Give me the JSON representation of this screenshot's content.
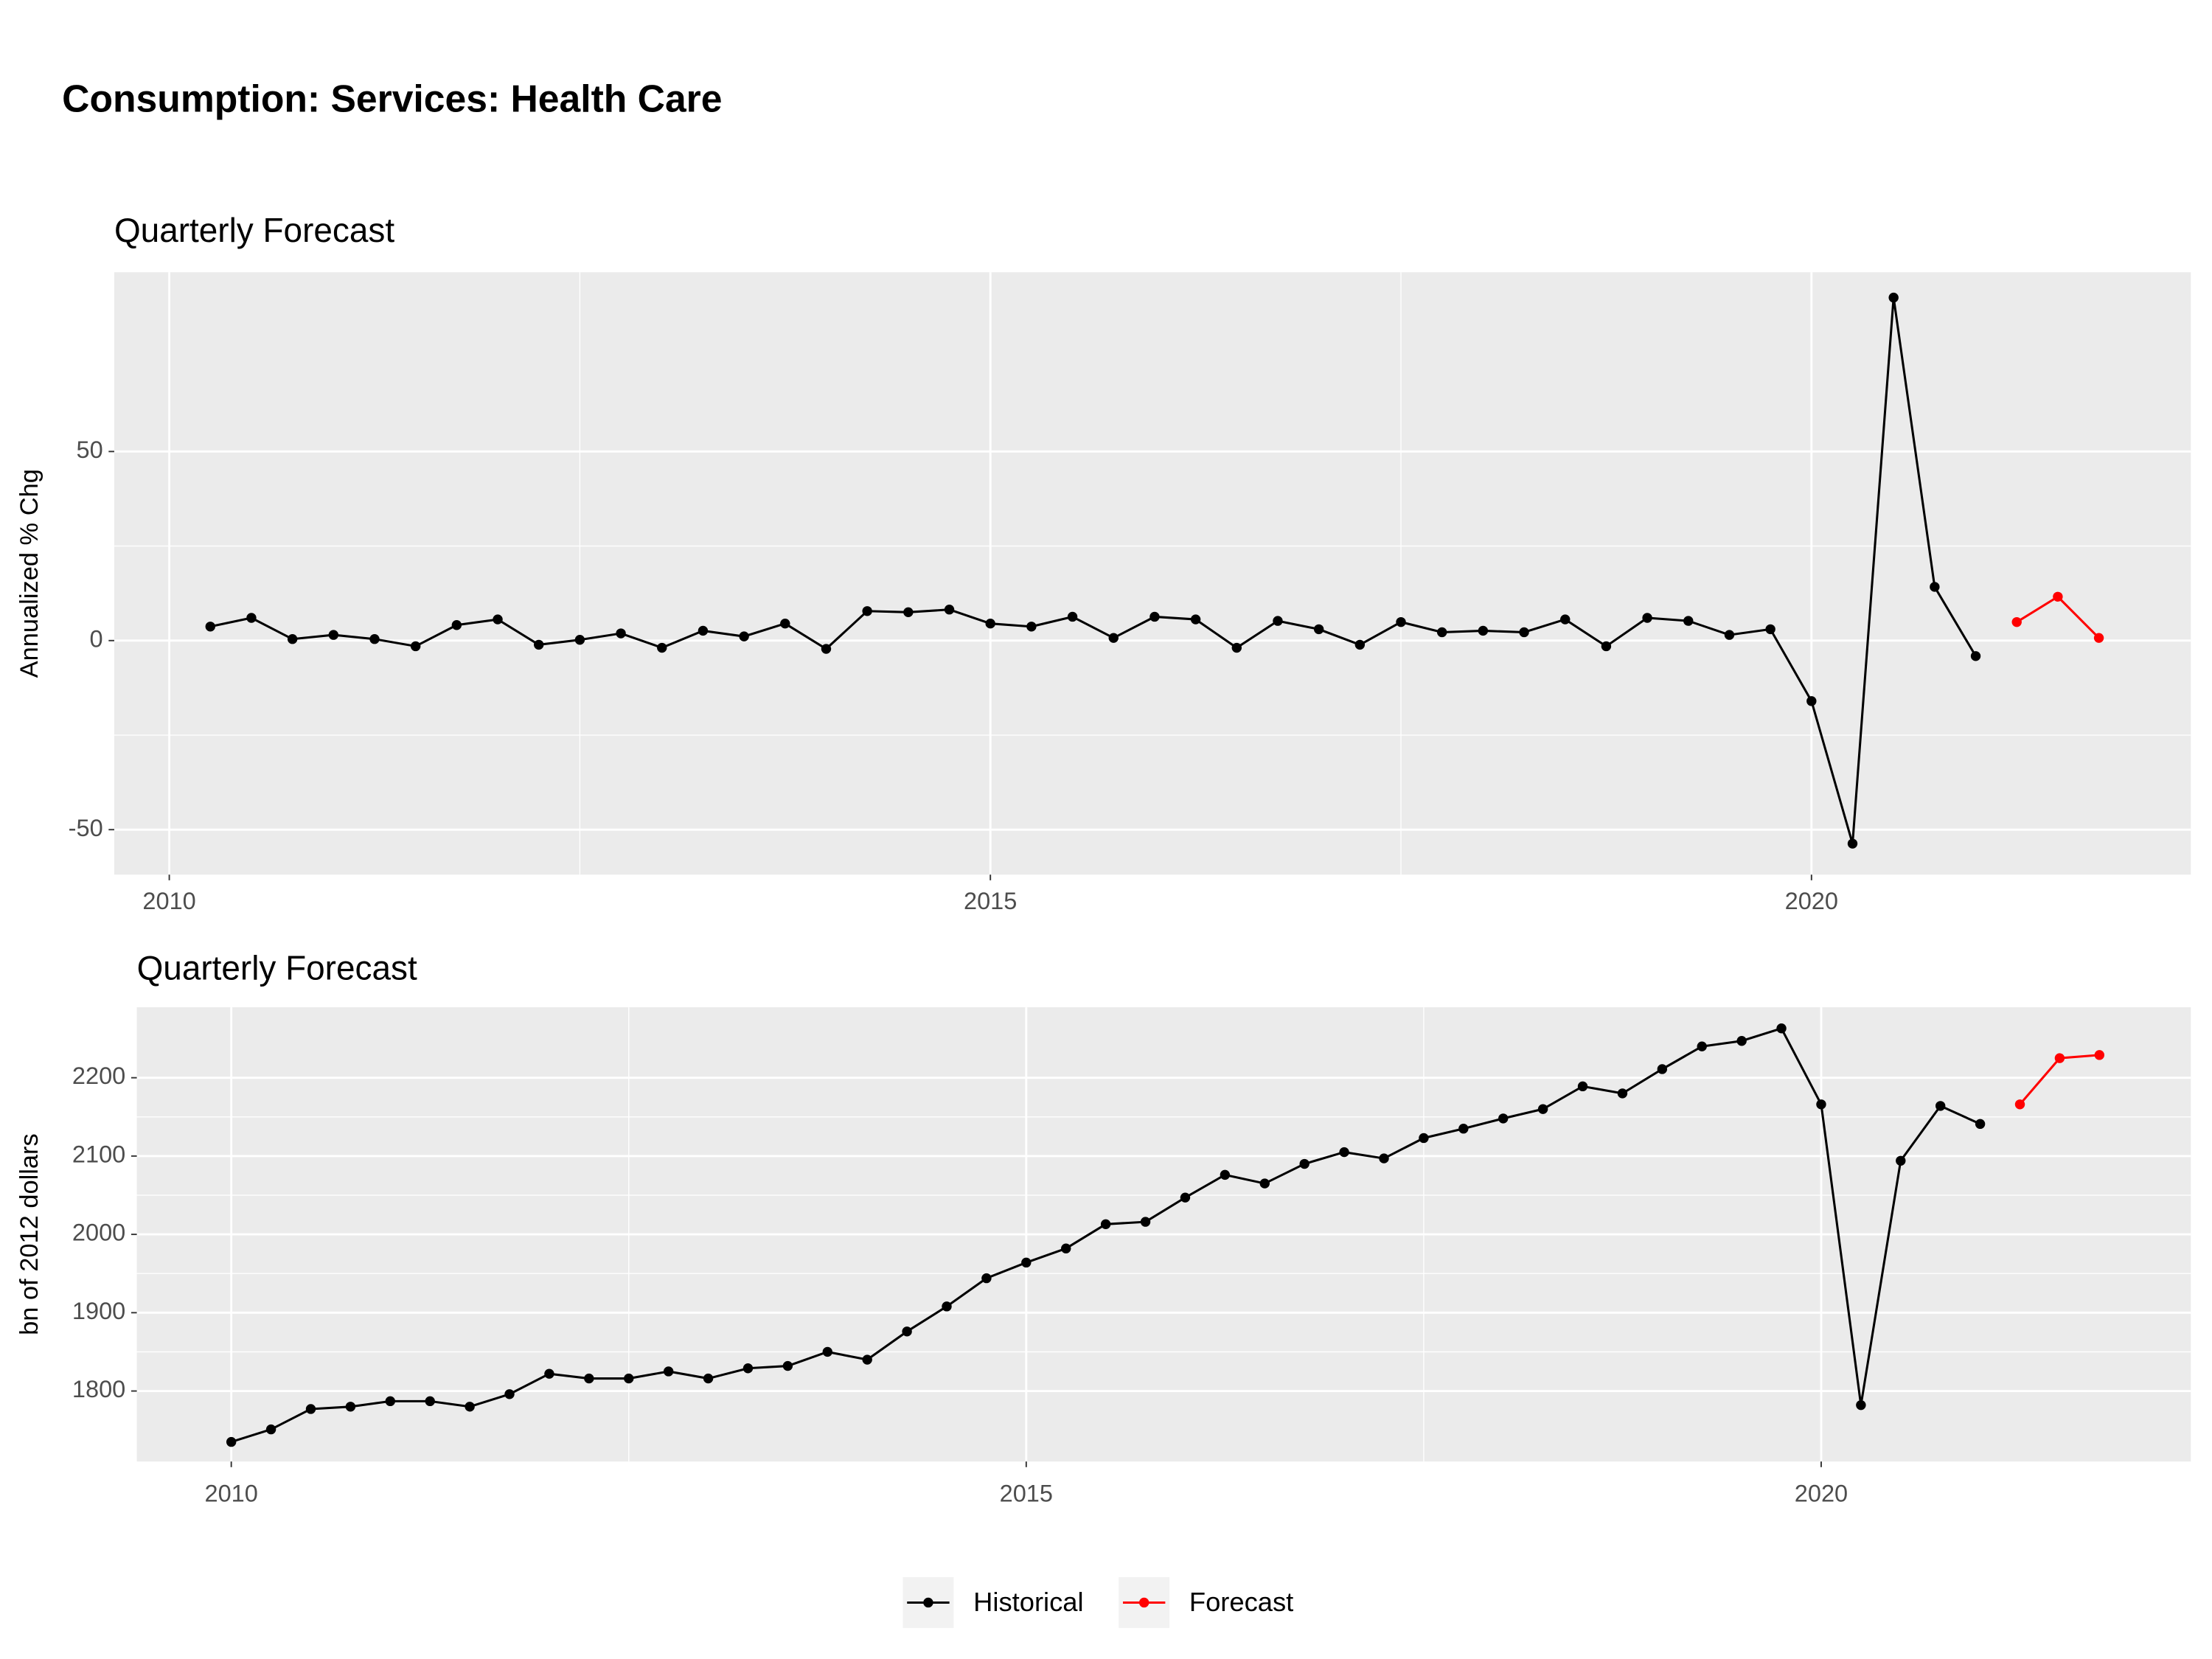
{
  "title": "Consumption: Services: Health Care",
  "chart_data": [
    {
      "type": "line",
      "subtitle": "Quarterly Forecast",
      "y_label": "Annualized % Chg",
      "xlim": [
        2009.665,
        2022.31
      ],
      "ylim": [
        -61.9,
        97.4
      ],
      "xticks": [
        2010,
        2015,
        2020
      ],
      "yticks": [
        -50,
        0,
        50
      ],
      "grid": true,
      "series": [
        {
          "name": "Historical",
          "color": "#000000",
          "x": [
            2010.25,
            2010.5,
            2010.75,
            2011,
            2011.25,
            2011.5,
            2011.75,
            2012,
            2012.25,
            2012.5,
            2012.75,
            2013,
            2013.25,
            2013.5,
            2013.75,
            2014,
            2014.25,
            2014.5,
            2014.75,
            2015,
            2015.25,
            2015.5,
            2015.75,
            2016,
            2016.25,
            2016.5,
            2016.75,
            2017,
            2017.25,
            2017.5,
            2017.75,
            2018,
            2018.25,
            2018.5,
            2018.75,
            2019,
            2019.25,
            2019.5,
            2019.75,
            2020,
            2020.25,
            2020.5,
            2020.75,
            2021
          ],
          "values": [
            3.7,
            6,
            0.4,
            1.5,
            0.4,
            -1.5,
            4.1,
            5.6,
            -1.1,
            0.2,
            1.9,
            -1.9,
            2.6,
            1.1,
            4.5,
            -2.2,
            7.8,
            7.5,
            8.2,
            4.5,
            3.7,
            6.3,
            0.7,
            6.3,
            5.6,
            -1.9,
            5.2,
            3,
            -1.1,
            4.9,
            2.2,
            2.6,
            2.2,
            5.6,
            -1.5,
            6,
            5.2,
            1.5,
            3,
            -16,
            -53.7,
            90.7,
            14.2,
            -4.1
          ]
        },
        {
          "name": "Forecast",
          "color": "#ff0000",
          "x": [
            2021.25,
            2021.5,
            2021.75
          ],
          "values": [
            4.9,
            11.6,
            0.7
          ]
        }
      ]
    },
    {
      "type": "line",
      "subtitle": "Quarterly Forecast",
      "y_label": "bn of 2012 dollars",
      "xlim": [
        2009.406,
        2022.325
      ],
      "ylim": [
        1710,
        2290
      ],
      "xticks": [
        2010,
        2015,
        2020
      ],
      "yticks": [
        1800,
        1900,
        2000,
        2100,
        2200
      ],
      "grid": true,
      "series": [
        {
          "name": "Historical",
          "color": "#000000",
          "x": [
            2010,
            2010.25,
            2010.5,
            2010.75,
            2011,
            2011.25,
            2011.5,
            2011.75,
            2012,
            2012.25,
            2012.5,
            2012.75,
            2013,
            2013.25,
            2013.5,
            2013.75,
            2014,
            2014.25,
            2014.5,
            2014.75,
            2015,
            2015.25,
            2015.5,
            2015.75,
            2016,
            2016.25,
            2016.5,
            2016.75,
            2017,
            2017.25,
            2017.5,
            2017.75,
            2018,
            2018.25,
            2018.5,
            2018.75,
            2019,
            2019.25,
            2019.5,
            2019.75,
            2020,
            2020.25,
            2020.5,
            2020.75,
            2021
          ],
          "values": [
            1735,
            1751,
            1777,
            1780,
            1787,
            1787,
            1780,
            1796,
            1822,
            1816,
            1816,
            1825,
            1816,
            1829,
            1832,
            1850,
            1840,
            1876,
            1908,
            1944,
            1964,
            1982,
            2013,
            2016,
            2047,
            2076,
            2065,
            2090,
            2105,
            2097,
            2123,
            2135,
            2148,
            2160,
            2189,
            2180,
            2211,
            2240,
            2247,
            2263,
            2166,
            1782,
            2094,
            2164,
            2141
          ]
        },
        {
          "name": "Forecast",
          "color": "#ff0000",
          "x": [
            2021.25,
            2021.5,
            2021.75
          ],
          "values": [
            2166,
            2225,
            2229
          ]
        }
      ]
    }
  ]
}
